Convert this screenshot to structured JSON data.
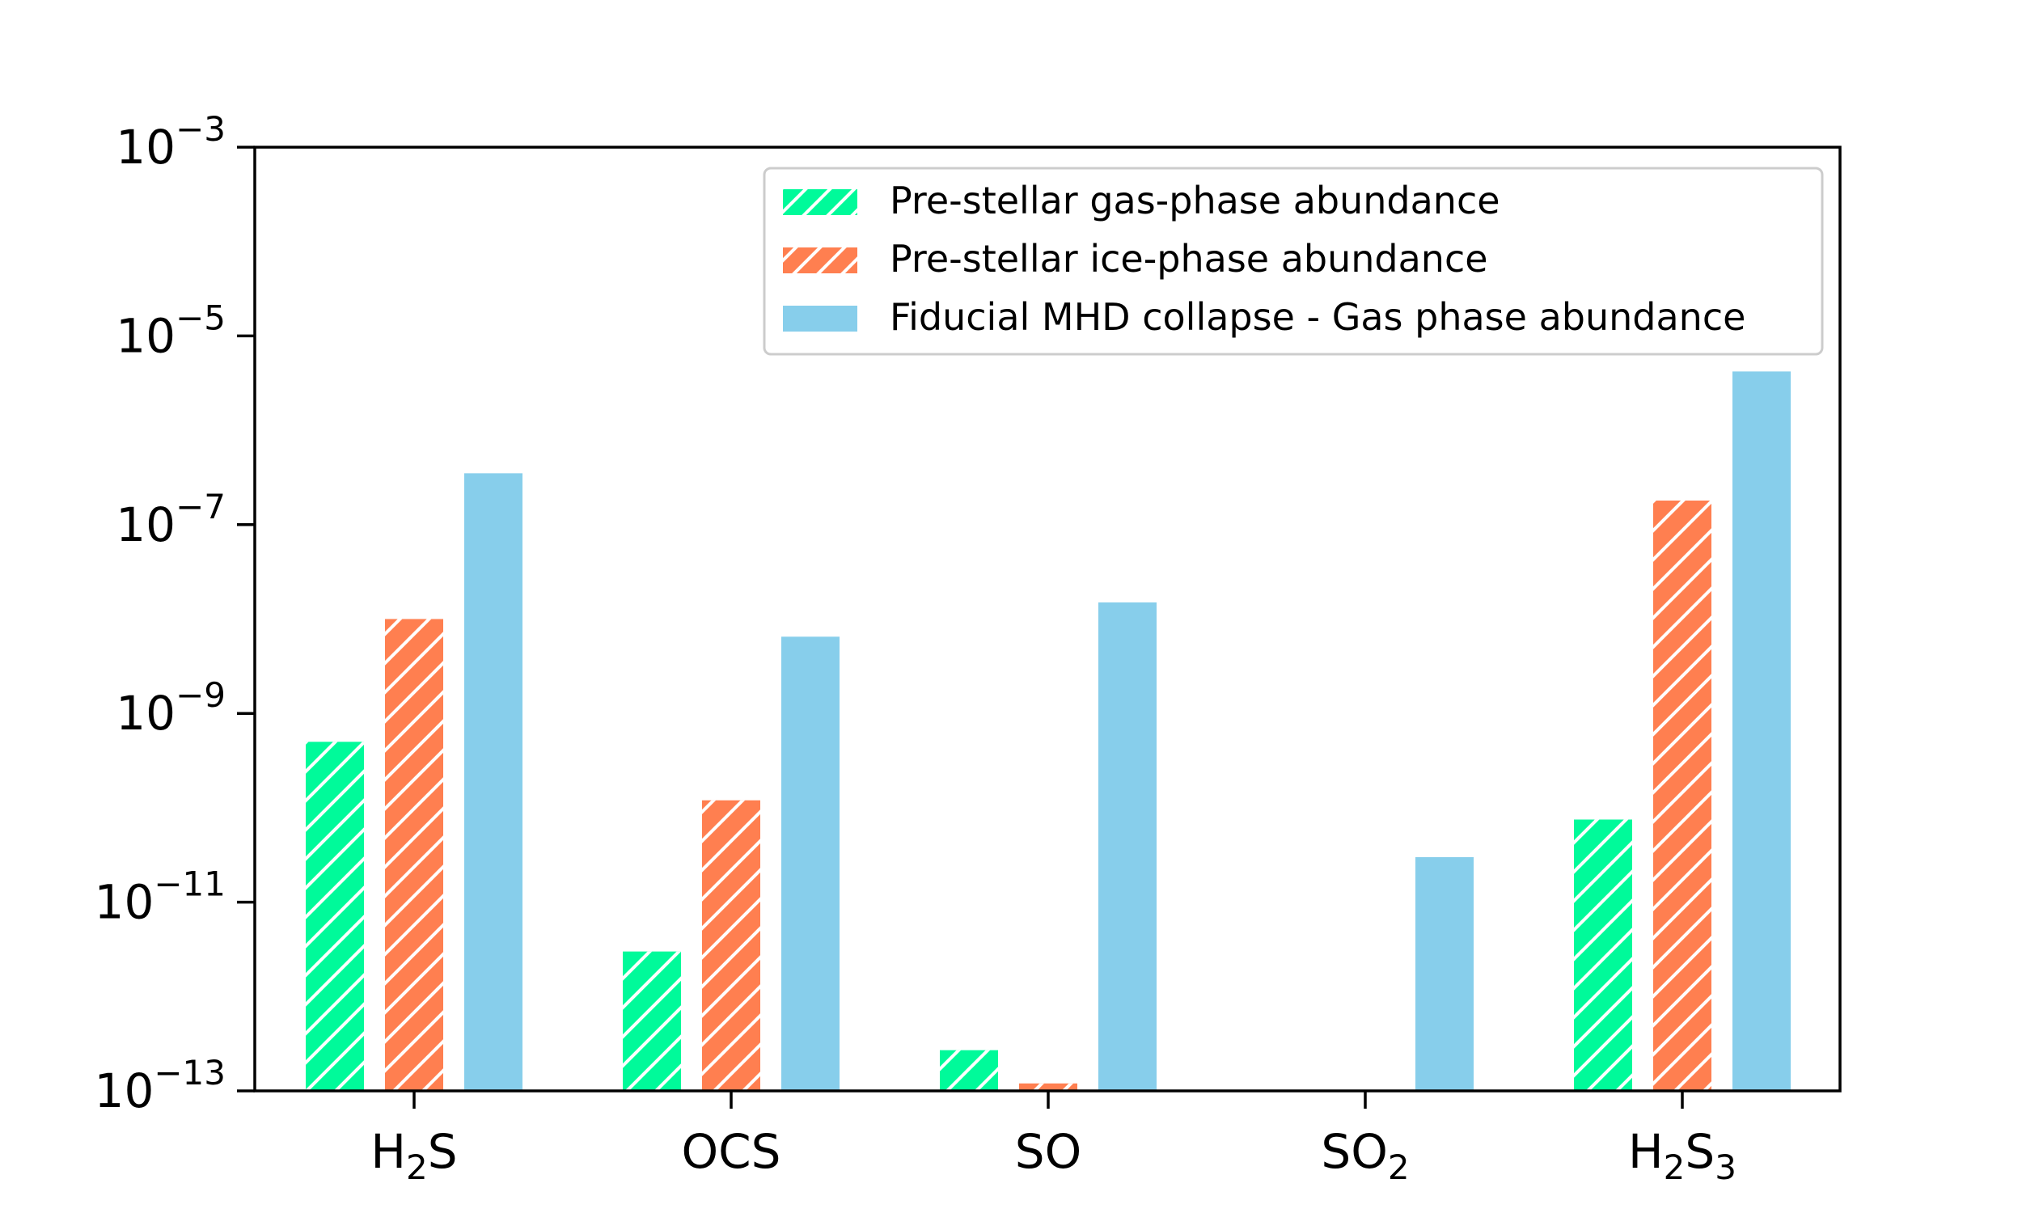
{
  "chart_data": {
    "type": "bar",
    "yscale": "log",
    "ylim": [
      1e-13,
      0.001
    ],
    "y_ticks": [
      {
        "base": "10",
        "exp": "−3",
        "value": 0.001
      },
      {
        "base": "10",
        "exp": "−5",
        "value": 1e-05
      },
      {
        "base": "10",
        "exp": "−7",
        "value": 1e-07
      },
      {
        "base": "10",
        "exp": "−9",
        "value": 1e-09
      },
      {
        "base": "10",
        "exp": "−11",
        "value": 1e-11
      },
      {
        "base": "10",
        "exp": "−13",
        "value": 1e-13
      }
    ],
    "categories": [
      {
        "label": "H2S",
        "parts": [
          {
            "t": "H",
            "sub": false
          },
          {
            "t": "2",
            "sub": true
          },
          {
            "t": "S",
            "sub": false
          }
        ]
      },
      {
        "label": "OCS",
        "parts": [
          {
            "t": "OCS",
            "sub": false
          }
        ]
      },
      {
        "label": "SO",
        "parts": [
          {
            "t": "SO",
            "sub": false
          }
        ]
      },
      {
        "label": "SO2",
        "parts": [
          {
            "t": "SO",
            "sub": false
          },
          {
            "t": "2",
            "sub": true
          }
        ]
      },
      {
        "label": "H2S3",
        "parts": [
          {
            "t": "H",
            "sub": false
          },
          {
            "t": "2",
            "sub": true
          },
          {
            "t": "S",
            "sub": false
          },
          {
            "t": "3",
            "sub": true
          }
        ]
      }
    ],
    "series": [
      {
        "name": "Pre-stellar gas-phase abundance",
        "color": "#00fa9a",
        "hatch": true,
        "values": [
          5e-10,
          3e-12,
          2.7e-13,
          null,
          7.5e-11
        ]
      },
      {
        "name": "Pre-stellar ice-phase abundance",
        "color": "#ff7f50",
        "hatch": true,
        "values": [
          1e-08,
          1.2e-10,
          1.2e-13,
          null,
          1.8e-07
        ]
      },
      {
        "name": "Fiducial MHD collapse - Gas phase abundance",
        "color": "#87ceeb",
        "hatch": false,
        "values": [
          3.5e-07,
          6.5e-09,
          1.5e-08,
          3e-11,
          4.2e-06
        ]
      }
    ],
    "legend_position": "top-right",
    "grid": false
  }
}
